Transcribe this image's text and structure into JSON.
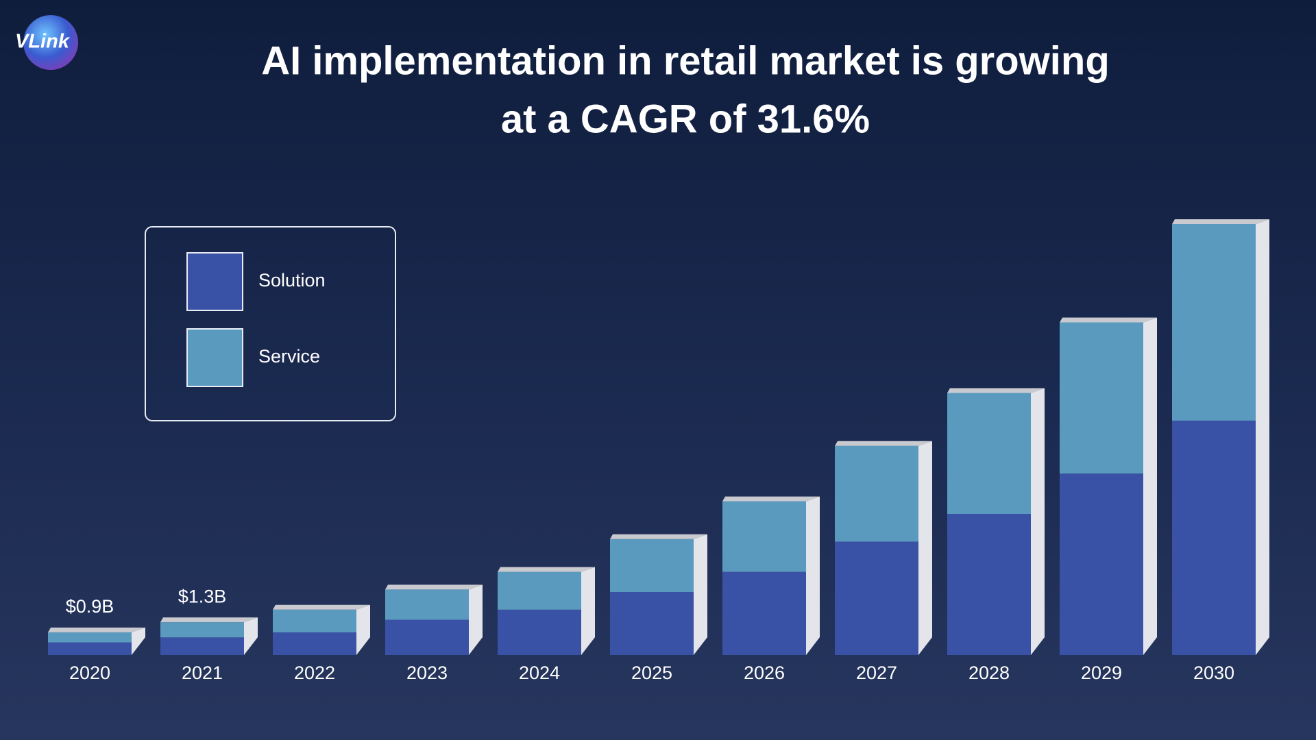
{
  "chart_data": {
    "type": "stacked_bar",
    "logo": "VLink",
    "title": [
      "AI implementation in retail market is growing",
      "at a CAGR of 31.6%"
    ],
    "categories": [
      "2020",
      "2021",
      "2022",
      "2023",
      "2024",
      "2025",
      "2026",
      "2027",
      "2028",
      "2029",
      "2030"
    ],
    "series": [
      {
        "name": "Solution",
        "color": "#3a52a6",
        "values": [
          0.5,
          0.7,
          0.9,
          1.4,
          1.8,
          2.5,
          3.3,
          4.5,
          5.6,
          7.2,
          9.3
        ]
      },
      {
        "name": "Service",
        "color": "#5b9abf",
        "values": [
          0.4,
          0.6,
          0.9,
          1.2,
          1.5,
          2.1,
          2.8,
          3.8,
          4.8,
          6.0,
          7.8
        ]
      }
    ],
    "annotations": [
      {
        "category": "2020",
        "value": 0.9,
        "label": "$0.9B"
      },
      {
        "category": "2021",
        "value": 1.3,
        "label": "$1.3B"
      }
    ],
    "legend": "upper left"
  }
}
